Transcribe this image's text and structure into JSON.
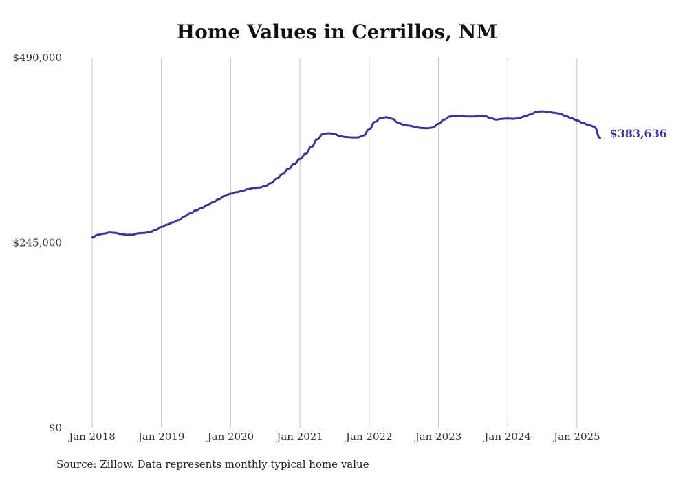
{
  "chart_data": {
    "type": "line",
    "title": "Home Values in Cerrillos, NM",
    "xlabel": "",
    "ylabel": "",
    "ylim": [
      0,
      490000
    ],
    "y_ticks": [
      "$0",
      "$245,000",
      "$490,000"
    ],
    "y_tick_values": [
      0,
      245000,
      490000
    ],
    "x_ticks": [
      "Jan 2018",
      "Jan 2019",
      "Jan 2020",
      "Jan 2021",
      "Jan 2022",
      "Jan 2023",
      "Jan 2024",
      "Jan 2025"
    ],
    "x_tick_dates": [
      "2018-01",
      "2019-01",
      "2020-01",
      "2021-01",
      "2022-01",
      "2023-01",
      "2024-01",
      "2025-01"
    ],
    "xlim": [
      "2018-01",
      "2025-05"
    ],
    "grid": "vertical",
    "line_color": "#3d3596",
    "end_label": "$383,636",
    "series": [
      {
        "x": [
          "2018-01",
          "2018-02",
          "2018-03",
          "2018-04",
          "2018-05",
          "2018-06",
          "2018-07",
          "2018-08",
          "2018-09",
          "2018-10",
          "2018-11",
          "2018-12",
          "2019-01",
          "2019-02",
          "2019-03",
          "2019-04",
          "2019-05",
          "2019-06",
          "2019-07",
          "2019-08",
          "2019-09",
          "2019-10",
          "2019-11",
          "2019-12",
          "2020-01",
          "2020-02",
          "2020-03",
          "2020-04",
          "2020-05",
          "2020-06",
          "2020-07",
          "2020-08",
          "2020-09",
          "2020-10",
          "2020-11",
          "2020-12",
          "2021-01",
          "2021-02",
          "2021-03",
          "2021-04",
          "2021-05",
          "2021-06",
          "2021-07",
          "2021-08",
          "2021-09",
          "2021-10",
          "2021-11",
          "2021-12",
          "2022-01",
          "2022-02",
          "2022-03",
          "2022-04",
          "2022-05",
          "2022-06",
          "2022-07",
          "2022-08",
          "2022-09",
          "2022-10",
          "2022-11",
          "2022-12",
          "2023-01",
          "2023-02",
          "2023-03",
          "2023-04",
          "2023-05",
          "2023-06",
          "2023-07",
          "2023-08",
          "2023-09",
          "2023-10",
          "2023-11",
          "2023-12",
          "2024-01",
          "2024-02",
          "2024-03",
          "2024-04",
          "2024-05",
          "2024-06",
          "2024-07",
          "2024-08",
          "2024-09",
          "2024-10",
          "2024-11",
          "2024-12",
          "2025-01",
          "2025-02",
          "2025-03",
          "2025-04",
          "2025-05"
        ],
        "values": [
          252000,
          255500,
          257000,
          258500,
          258000,
          256500,
          255500,
          255500,
          257500,
          258000,
          259000,
          262000,
          266000,
          269000,
          272000,
          275000,
          280000,
          284000,
          288000,
          291000,
          295000,
          299000,
          303000,
          307000,
          310000,
          312000,
          313500,
          316000,
          317500,
          318000,
          320000,
          324000,
          330000,
          336000,
          343000,
          349000,
          356000,
          363000,
          372000,
          382000,
          389000,
          390000,
          389000,
          386000,
          385000,
          384500,
          384500,
          387000,
          395000,
          405000,
          410000,
          411000,
          409000,
          404000,
          401000,
          400000,
          398000,
          397000,
          396500,
          397500,
          402500,
          408000,
          412000,
          413000,
          412500,
          412000,
          412000,
          413000,
          413000,
          410000,
          408000,
          409000,
          409500,
          409000,
          410000,
          412500,
          415000,
          418500,
          419000,
          418500,
          417000,
          416000,
          413000,
          410000,
          407000,
          403500,
          401000,
          398500,
          383636
        ]
      }
    ]
  },
  "footer": {
    "source": "Source: Zillow. Data represents monthly typical home value"
  }
}
